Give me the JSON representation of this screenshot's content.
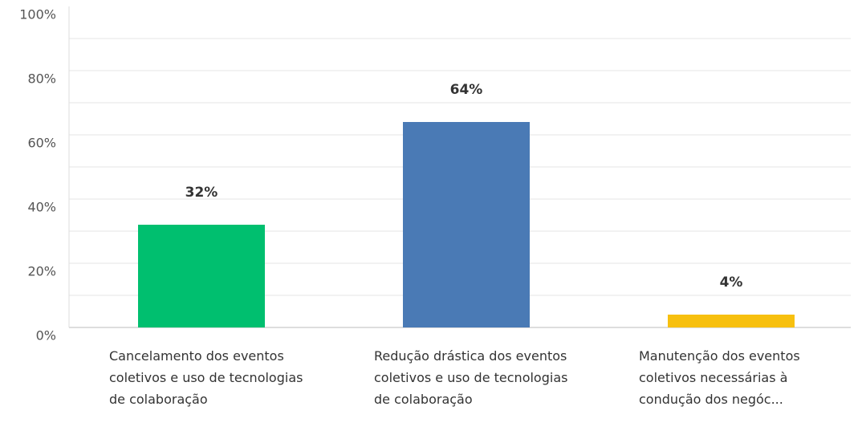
{
  "chart_data": {
    "type": "bar",
    "categories": [
      "Cancelamento dos eventos coletivos e uso de tecnologias de colaboração",
      "Redução drástica dos eventos coletivos e uso de tecnologias de colaboração",
      "Manutenção dos eventos coletivos necessárias à condução dos negóc..."
    ],
    "values": [
      32,
      64,
      4
    ],
    "value_labels": [
      "32%",
      "64%",
      "4%"
    ],
    "colors": [
      "#00bf6f",
      "#4a7ab5",
      "#f7c00f"
    ],
    "ylim": [
      0,
      100
    ],
    "yticks": [
      {
        "value": 0,
        "label": "0%"
      },
      {
        "value": 20,
        "label": "20%"
      },
      {
        "value": 40,
        "label": "40%"
      },
      {
        "value": 60,
        "label": "60%"
      },
      {
        "value": 80,
        "label": "80%"
      },
      {
        "value": 100,
        "label": "100%"
      }
    ],
    "minor_yticks": [
      10,
      30,
      50,
      70,
      90
    ],
    "grid": true
  }
}
